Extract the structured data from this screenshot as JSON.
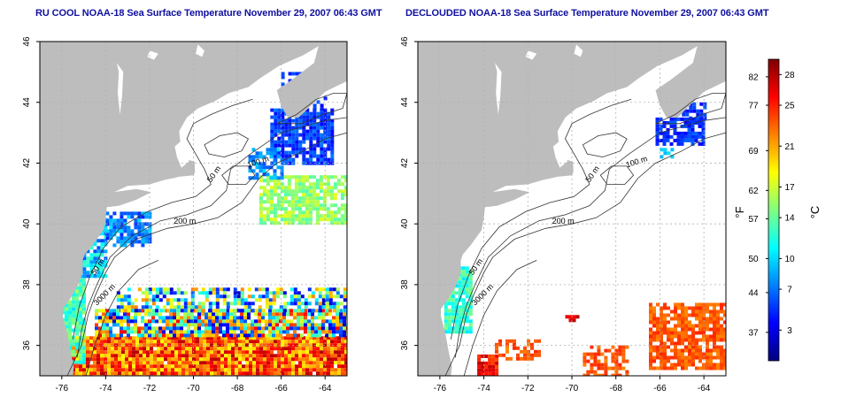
{
  "panels": [
    {
      "title": "RU COOL NOAA-18 Sea Surface Temperature November 29, 2007 06:43 GMT",
      "variant": "raw"
    },
    {
      "title": "DECLOUDED NOAA-18 Sea Surface Temperature November 29, 2007 06:43 GMT",
      "variant": "declouded"
    }
  ],
  "axes": {
    "lon_range": [
      -77,
      -63
    ],
    "lat_range": [
      35,
      46
    ],
    "x_ticks": [
      "-76",
      "-74",
      "-72",
      "-70",
      "-68",
      "-66",
      "-64"
    ],
    "y_ticks": [
      "36",
      "38",
      "40",
      "42",
      "44",
      "46"
    ]
  },
  "contours": {
    "labels": [
      "200 m",
      "100 m",
      "50 m",
      "3000 m",
      "50 m"
    ]
  },
  "colorbar": {
    "unit_f": "°F",
    "unit_c": "°C",
    "fahrenheit_ticks": [
      "82",
      "77",
      "69",
      "62",
      "57",
      "50",
      "44",
      "37"
    ],
    "celsius_ticks": [
      "28",
      "25",
      "21",
      "17",
      "14",
      "10",
      "7",
      "3"
    ],
    "colors": [
      "#00007f",
      "#0000ff",
      "#0080ff",
      "#00ffff",
      "#80ff80",
      "#ffff00",
      "#ff8000",
      "#ff0000",
      "#7f0000"
    ]
  },
  "colors": {
    "land": "#bdbdbd",
    "ocean_cloud": "#ffffff",
    "title": "#1010a0"
  }
}
